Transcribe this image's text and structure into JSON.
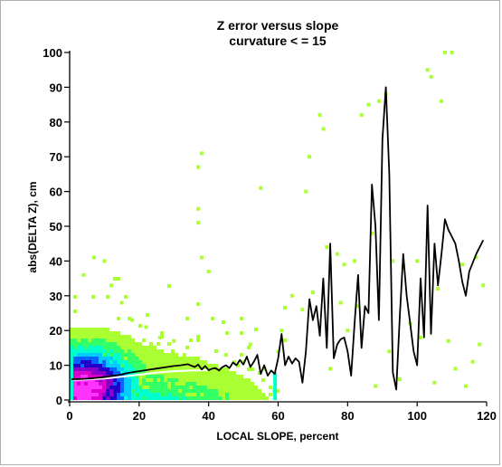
{
  "chart_data": {
    "type": "scatter",
    "title": "Z error versus slope",
    "subtitle": "curvature < = 15",
    "xlabel": "LOCAL SLOPE, percent",
    "ylabel": "abs(DELTA Z), cm",
    "xlim": [
      0,
      120
    ],
    "ylim": [
      0,
      100
    ],
    "x_ticks": [
      "0",
      "20",
      "40",
      "60",
      "80",
      "100",
      "120"
    ],
    "y_ticks": [
      "0",
      "10",
      "20",
      "30",
      "40",
      "50",
      "60",
      "70",
      "80",
      "90",
      "100"
    ],
    "grid": false,
    "legend": "none",
    "density_colors": [
      "#aaff33",
      "#33ff66",
      "#00ffcc",
      "#00ccff",
      "#0066ff",
      "#2200cc",
      "#8800cc",
      "#dd00cc",
      "#ff33ff"
    ],
    "mean_line": {
      "color": "#000000",
      "x": [
        0.5,
        2,
        4,
        6,
        8,
        10,
        12,
        14,
        16,
        18,
        20,
        22,
        24,
        26,
        28,
        30,
        32,
        34,
        36,
        37,
        38,
        39,
        40,
        41,
        42,
        43,
        44,
        45,
        46,
        47,
        48,
        49,
        50,
        51,
        52,
        53,
        54,
        55,
        56,
        57,
        58,
        59,
        60,
        61,
        62,
        63,
        64,
        65,
        66,
        67,
        68,
        69,
        70,
        71,
        72,
        73,
        74,
        75,
        76,
        77,
        78,
        79,
        80,
        81,
        82,
        83,
        84,
        85,
        86,
        87,
        88,
        89,
        90,
        91,
        92,
        93,
        94,
        95,
        96,
        97,
        98,
        99,
        100,
        101,
        102,
        103,
        104,
        105,
        106,
        107,
        108,
        109,
        110,
        111,
        112,
        113,
        114,
        115,
        117,
        119
      ],
      "y": [
        6,
        6,
        6.1,
        6.2,
        6.4,
        6.6,
        6.9,
        7.2,
        7.6,
        8,
        8.3,
        8.6,
        8.9,
        9.2,
        9.5,
        9.8,
        10,
        10.3,
        9.5,
        10.2,
        8.8,
        9.8,
        8.6,
        9,
        9.2,
        8.5,
        9.5,
        10,
        9.2,
        10.8,
        10,
        11.5,
        10.2,
        12.5,
        9.5,
        11,
        13,
        7.5,
        10,
        7,
        8.5,
        7.5,
        12,
        19,
        10,
        12.5,
        10.5,
        12,
        11,
        5,
        14,
        29,
        23,
        27,
        18.5,
        35,
        15,
        45,
        12,
        16,
        17.5,
        18,
        14,
        7,
        22,
        36,
        15,
        27,
        25,
        62,
        50,
        23,
        75,
        90,
        65,
        8,
        3,
        24,
        42,
        30,
        22,
        14,
        10,
        35,
        18,
        56,
        19,
        45,
        33,
        42,
        52,
        49,
        47,
        45,
        40,
        34,
        30,
        37,
        42,
        46
      ]
    },
    "median_line": {
      "color": "#ffffff",
      "x": [
        1,
        5,
        10,
        15,
        20,
        25,
        30,
        35,
        40
      ],
      "y": [
        5.8,
        5.9,
        6.2,
        6.7,
        7.3,
        7.9,
        8.3,
        8.5,
        8.6
      ]
    }
  }
}
